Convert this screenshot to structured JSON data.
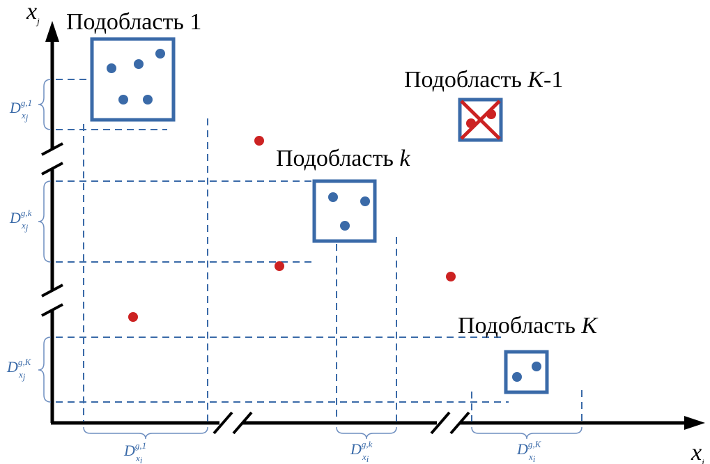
{
  "colors": {
    "axis": "#000000",
    "box": "#3a6aa8",
    "guide": "#3a6aa8",
    "point_inside": "#3a6aa8",
    "point_outside": "#cc2222",
    "cross": "#cc2222",
    "brace": "#6f8fc0"
  },
  "axes": {
    "x_label_main": "x",
    "x_label_sub": "i",
    "y_label_main": "x",
    "y_label_sub": "j"
  },
  "subregions": [
    {
      "id": "sub-1",
      "prefix": "Подобласть ",
      "suffix": "1",
      "suffix_italic": false,
      "tail": ""
    },
    {
      "id": "sub-k-1",
      "prefix": "Подобласть ",
      "suffix": "K",
      "suffix_italic": true,
      "tail": "-1"
    },
    {
      "id": "sub-k",
      "prefix": "Подобласть ",
      "suffix": "k",
      "suffix_italic": true,
      "tail": ""
    },
    {
      "id": "sub-K",
      "prefix": "Подобласть ",
      "suffix": "K",
      "suffix_italic": true,
      "tail": ""
    }
  ],
  "interval_labels": {
    "base": "D",
    "sub_xi": "x",
    "sub_xi_index": "i",
    "sub_xj": "x",
    "sub_xj_index": "j",
    "sup_1": "g,1",
    "sup_k": "g,k",
    "sup_K": "g,K"
  }
}
